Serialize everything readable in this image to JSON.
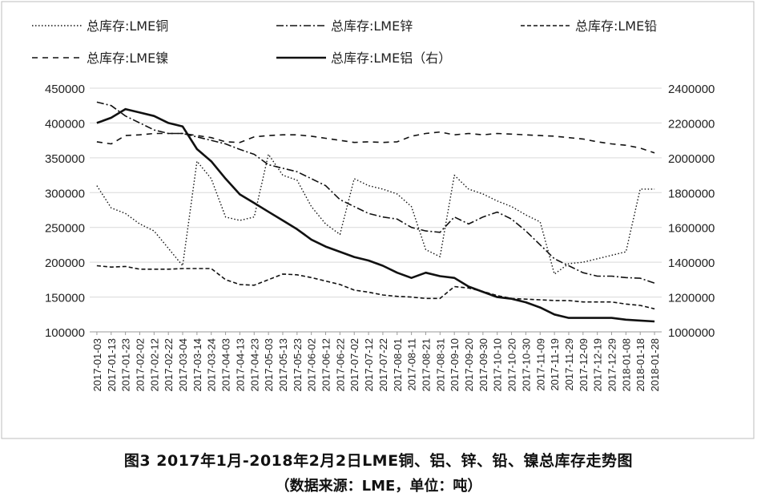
{
  "caption": {
    "title": "图3 2017年1月-2018年2月2日LME铜、铝、锌、铅、镍总库存走势图",
    "source": "（数据来源：LME，单位：吨）"
  },
  "chart_data": {
    "type": "line",
    "grid": "horizontal",
    "legend_position": "top",
    "left_axis": {
      "min": 100000,
      "max": 450000,
      "ticks": [
        "100000",
        "150000",
        "200000",
        "250000",
        "300000",
        "350000",
        "400000",
        "450000"
      ]
    },
    "right_axis": {
      "min": 1000000,
      "max": 2400000,
      "ticks": [
        "1000000",
        "1200000",
        "1400000",
        "1600000",
        "1800000",
        "2000000",
        "2200000",
        "2400000"
      ]
    },
    "x_labels": [
      "2017-01-03",
      "2017-01-13",
      "2017-01-23",
      "2017-02-02",
      "2017-02-12",
      "2017-02-22",
      "2017-03-04",
      "2017-03-14",
      "2017-03-24",
      "2017-04-03",
      "2017-04-13",
      "2017-04-23",
      "2017-05-03",
      "2017-05-13",
      "2017-05-23",
      "2017-06-02",
      "2017-06-12",
      "2017-06-22",
      "2017-07-02",
      "2017-07-12",
      "2017-07-22",
      "2017-08-01",
      "2017-08-11",
      "2017-08-21",
      "2017-08-31",
      "2017-09-10",
      "2017-09-20",
      "2017-09-30",
      "2017-10-10",
      "2017-10-20",
      "2017-10-30",
      "2017-11-09",
      "2017-11-19",
      "2017-11-29",
      "2017-12-09",
      "2017-12-19",
      "2017-12-29",
      "2018-01-08",
      "2018-01-18",
      "2018-01-28"
    ],
    "series": [
      {
        "name": "总库存:LME铜",
        "axis": "left",
        "style": "dotted",
        "values": [
          310000,
          278000,
          270000,
          255000,
          245000,
          220000,
          195000,
          345000,
          320000,
          265000,
          260000,
          265000,
          355000,
          325000,
          318000,
          280000,
          255000,
          240000,
          320000,
          310000,
          305000,
          298000,
          280000,
          218000,
          208000,
          325000,
          305000,
          298000,
          288000,
          280000,
          268000,
          258000,
          183000,
          198000,
          200000,
          205000,
          210000,
          215000,
          305000,
          305000
        ]
      },
      {
        "name": "总库存:LME锌",
        "axis": "left",
        "style": "dashdot",
        "values": [
          430000,
          425000,
          410000,
          400000,
          390000,
          385000,
          385000,
          380000,
          375000,
          370000,
          362000,
          355000,
          340000,
          335000,
          330000,
          320000,
          310000,
          290000,
          280000,
          270000,
          265000,
          262000,
          250000,
          245000,
          243000,
          265000,
          255000,
          265000,
          272000,
          262000,
          245000,
          225000,
          205000,
          195000,
          185000,
          180000,
          180000,
          178000,
          177000,
          170000
        ]
      },
      {
        "name": "总库存:LME铅",
        "axis": "left",
        "style": "dashed",
        "values": [
          195000,
          193000,
          194000,
          190000,
          190000,
          190000,
          191000,
          191000,
          191000,
          175000,
          168000,
          167000,
          175000,
          183000,
          182000,
          178000,
          173000,
          168000,
          160000,
          157000,
          153000,
          151000,
          150000,
          148000,
          148000,
          165000,
          163000,
          158000,
          152000,
          148000,
          147000,
          146000,
          145000,
          145000,
          143000,
          143000,
          143000,
          140000,
          138000,
          133000
        ]
      },
      {
        "name": "总库存:LME镍",
        "axis": "left",
        "style": "longdash",
        "values": [
          373000,
          370000,
          382000,
          383000,
          385000,
          385000,
          385000,
          382000,
          379000,
          373000,
          372000,
          380000,
          382000,
          383000,
          383000,
          381000,
          378000,
          375000,
          372000,
          373000,
          372000,
          373000,
          381000,
          385000,
          387000,
          383000,
          385000,
          383000,
          385000,
          384000,
          383000,
          382000,
          381000,
          379000,
          377000,
          373000,
          370000,
          368000,
          364000,
          357000
        ]
      },
      {
        "name": "总库存:LME铝（右）",
        "axis": "right",
        "style": "solid",
        "values": [
          2200000,
          2230000,
          2280000,
          2260000,
          2240000,
          2200000,
          2180000,
          2050000,
          1980000,
          1880000,
          1790000,
          1740000,
          1690000,
          1640000,
          1590000,
          1530000,
          1490000,
          1460000,
          1430000,
          1410000,
          1380000,
          1340000,
          1310000,
          1340000,
          1320000,
          1310000,
          1260000,
          1230000,
          1200000,
          1190000,
          1170000,
          1140000,
          1100000,
          1080000,
          1080000,
          1080000,
          1080000,
          1070000,
          1065000,
          1060000
        ]
      }
    ]
  }
}
